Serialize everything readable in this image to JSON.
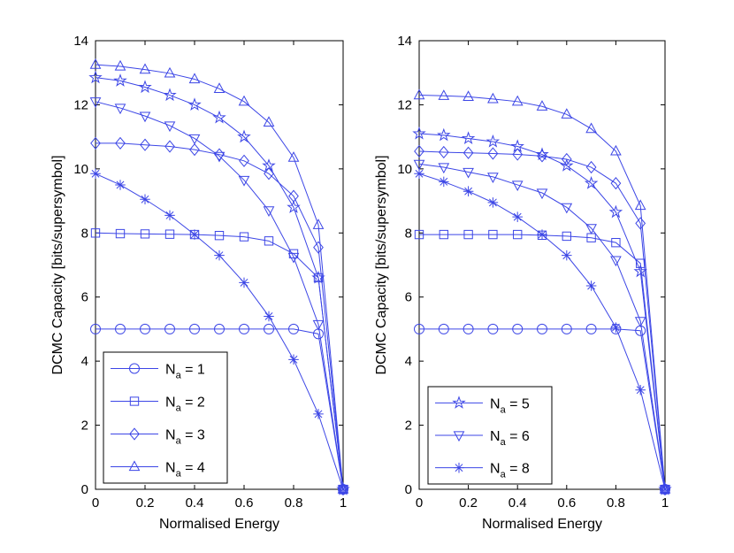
{
  "chart_data": [
    {
      "type": "line",
      "xlabel": "Normalised Energy",
      "ylabel": "DCMC Capacity [bits/supersymbol]",
      "xlim": [
        0,
        1
      ],
      "ylim": [
        0,
        14
      ],
      "xticks": [
        0,
        0.2,
        0.4,
        0.6,
        0.8,
        1
      ],
      "yticks": [
        0,
        2,
        4,
        6,
        8,
        10,
        12,
        14
      ],
      "xtick_labels": [
        "0",
        "0.2",
        "0.4",
        "0.6",
        "0.8",
        "1"
      ],
      "ytick_labels": [
        "0",
        "2",
        "4",
        "6",
        "8",
        "10",
        "12",
        "14"
      ],
      "grid": false,
      "legend_position": "bottom-left",
      "x": [
        0,
        0.1,
        0.2,
        0.3,
        0.4,
        0.5,
        0.6,
        0.7,
        0.8,
        0.9,
        1
      ],
      "series": [
        {
          "name": "N_a = 1",
          "label_main": "N",
          "label_sub": "a",
          "label_rest": " = 1",
          "marker": "circle",
          "values": [
            5.0,
            5.0,
            5.0,
            5.0,
            5.0,
            5.0,
            5.0,
            5.0,
            5.0,
            4.85,
            0
          ]
        },
        {
          "name": "N_a = 2",
          "label_main": "N",
          "label_sub": "a",
          "label_rest": " = 2",
          "marker": "square",
          "values": [
            8.0,
            7.98,
            7.97,
            7.96,
            7.95,
            7.92,
            7.88,
            7.75,
            7.35,
            6.6,
            0
          ]
        },
        {
          "name": "N_a = 3",
          "label_main": "N",
          "label_sub": "a",
          "label_rest": " = 3",
          "marker": "diamond",
          "values": [
            10.8,
            10.8,
            10.75,
            10.7,
            10.6,
            10.45,
            10.25,
            9.85,
            9.15,
            7.55,
            0
          ]
        },
        {
          "name": "N_a = 4",
          "label_main": "N",
          "label_sub": "a",
          "label_rest": " = 4",
          "marker": "triangle-up",
          "values": [
            13.25,
            13.2,
            13.1,
            12.98,
            12.8,
            12.5,
            12.1,
            11.45,
            10.35,
            8.25,
            0
          ]
        },
        {
          "name": "N_a = 5",
          "label_main": "N",
          "label_sub": "a",
          "label_rest": " = 5",
          "marker": "pentagram",
          "values": [
            12.85,
            12.75,
            12.55,
            12.3,
            12.0,
            11.6,
            11.0,
            10.1,
            8.8,
            6.6,
            0
          ]
        },
        {
          "name": "N_a = 6",
          "label_main": "N",
          "label_sub": "a",
          "label_rest": " = 6",
          "marker": "triangle-down",
          "values": [
            12.1,
            11.9,
            11.65,
            11.35,
            10.95,
            10.4,
            9.65,
            8.7,
            7.25,
            5.15,
            0
          ]
        },
        {
          "name": "N_a = 8",
          "label_main": "N",
          "label_sub": "a",
          "label_rest": " = 8",
          "marker": "asterisk",
          "values": [
            9.85,
            9.5,
            9.05,
            8.55,
            7.95,
            7.3,
            6.45,
            5.4,
            4.05,
            2.35,
            0
          ]
        }
      ],
      "legend": [
        {
          "label_main": "N",
          "label_sub": "a",
          "label_rest": " = 1",
          "marker": "circle"
        },
        {
          "label_main": "N",
          "label_sub": "a",
          "label_rest": " = 2",
          "marker": "square"
        },
        {
          "label_main": "N",
          "label_sub": "a",
          "label_rest": " = 3",
          "marker": "diamond"
        },
        {
          "label_main": "N",
          "label_sub": "a",
          "label_rest": " = 4",
          "marker": "triangle-up"
        }
      ]
    },
    {
      "type": "line",
      "xlabel": "Normalised Energy",
      "ylabel": "DCMC Capacity [bits/supersymbol]",
      "xlim": [
        0,
        1
      ],
      "ylim": [
        0,
        14
      ],
      "xticks": [
        0,
        0.2,
        0.4,
        0.6,
        0.8,
        1
      ],
      "yticks": [
        0,
        2,
        4,
        6,
        8,
        10,
        12,
        14
      ],
      "xtick_labels": [
        "0",
        "0.2",
        "0.4",
        "0.6",
        "0.8",
        "1"
      ],
      "ytick_labels": [
        "0",
        "2",
        "4",
        "6",
        "8",
        "10",
        "12",
        "14"
      ],
      "grid": false,
      "legend_position": "bottom-left",
      "x": [
        0,
        0.1,
        0.2,
        0.3,
        0.4,
        0.5,
        0.6,
        0.7,
        0.8,
        0.9,
        1
      ],
      "series": [
        {
          "name": "N_a = 1",
          "label_main": "N",
          "label_sub": "a",
          "label_rest": " = 1",
          "marker": "circle",
          "values": [
            5.0,
            5.0,
            5.0,
            5.0,
            5.0,
            5.0,
            5.0,
            5.0,
            5.0,
            4.95,
            0
          ]
        },
        {
          "name": "N_a = 2",
          "label_main": "N",
          "label_sub": "a",
          "label_rest": " = 2",
          "marker": "square",
          "values": [
            7.95,
            7.95,
            7.95,
            7.95,
            7.95,
            7.93,
            7.9,
            7.85,
            7.7,
            7.05,
            0
          ]
        },
        {
          "name": "N_a = 3",
          "label_main": "N",
          "label_sub": "a",
          "label_rest": " = 3",
          "marker": "diamond",
          "values": [
            10.55,
            10.52,
            10.5,
            10.48,
            10.45,
            10.4,
            10.3,
            10.05,
            9.55,
            8.3,
            0
          ]
        },
        {
          "name": "N_a = 4",
          "label_main": "N",
          "label_sub": "a",
          "label_rest": " = 4",
          "marker": "triangle-up",
          "values": [
            12.3,
            12.28,
            12.25,
            12.18,
            12.1,
            11.95,
            11.7,
            11.25,
            10.55,
            8.85,
            0
          ]
        },
        {
          "name": "N_a = 5",
          "label_main": "N",
          "label_sub": "a",
          "label_rest": " = 5",
          "marker": "pentagram",
          "values": [
            11.1,
            11.05,
            10.95,
            10.85,
            10.7,
            10.45,
            10.1,
            9.55,
            8.65,
            6.8,
            0
          ]
        },
        {
          "name": "N_a = 6",
          "label_main": "N",
          "label_sub": "a",
          "label_rest": " = 6",
          "marker": "triangle-down",
          "values": [
            10.15,
            10.05,
            9.9,
            9.75,
            9.5,
            9.25,
            8.8,
            8.15,
            7.15,
            5.25,
            0
          ]
        },
        {
          "name": "N_a = 8",
          "label_main": "N",
          "label_sub": "a",
          "label_rest": " = 8",
          "marker": "asterisk",
          "values": [
            9.85,
            9.6,
            9.3,
            8.95,
            8.5,
            7.95,
            7.3,
            6.35,
            5.05,
            3.1,
            0
          ]
        }
      ],
      "legend": [
        {
          "label_main": "N",
          "label_sub": "a",
          "label_rest": " = 5",
          "marker": "pentagram"
        },
        {
          "label_main": "N",
          "label_sub": "a",
          "label_rest": " = 6",
          "marker": "triangle-down"
        },
        {
          "label_main": "N",
          "label_sub": "a",
          "label_rest": " = 8",
          "marker": "asterisk"
        }
      ]
    }
  ],
  "style": {
    "line_color": "#3c46e6",
    "axis_color": "#000000",
    "background": "#ffffff"
  }
}
